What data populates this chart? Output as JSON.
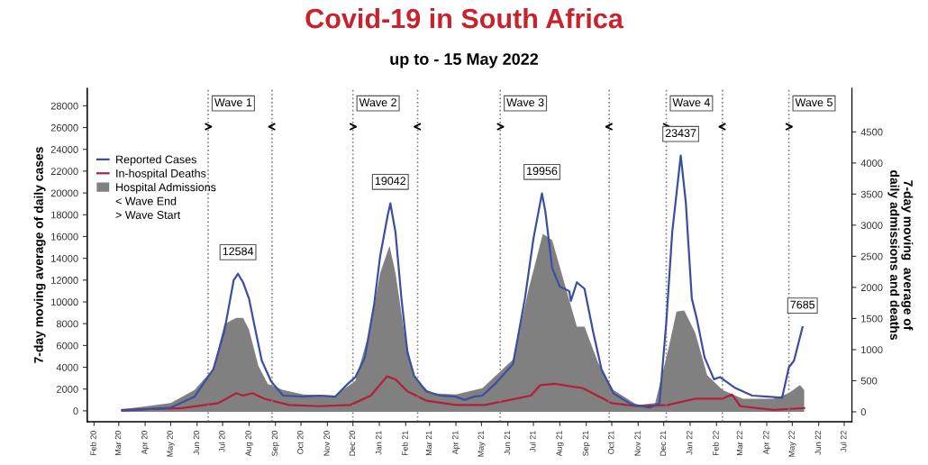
{
  "chart_data": {
    "type": "line",
    "title": "Covid-19 in South Africa",
    "subtitle": "up to - 15 May 2022",
    "ylabel": "7-day moving average of daily cases",
    "y2label": "7-day moving  average of\ndaily admissions and deaths",
    "xlim": [
      "2020-01-24",
      "2022-07-10"
    ],
    "xticks": [
      {
        "value": "2020-02-01",
        "label": "Feb 20"
      },
      {
        "value": "2020-03-01",
        "label": "Mar 20"
      },
      {
        "value": "2020-04-01",
        "label": "Apr 20"
      },
      {
        "value": "2020-05-01",
        "label": "May 20"
      },
      {
        "value": "2020-06-01",
        "label": "Jun 20"
      },
      {
        "value": "2020-07-01",
        "label": "Jul 20"
      },
      {
        "value": "2020-08-01",
        "label": "Aug 20"
      },
      {
        "value": "2020-09-01",
        "label": "Sep 20"
      },
      {
        "value": "2020-10-01",
        "label": "Oct 20"
      },
      {
        "value": "2020-11-01",
        "label": "Nov 20"
      },
      {
        "value": "2020-12-01",
        "label": "Dec 20"
      },
      {
        "value": "2021-01-01",
        "label": "Jan 21"
      },
      {
        "value": "2021-02-01",
        "label": "Feb 21"
      },
      {
        "value": "2021-03-01",
        "label": "Mar 21"
      },
      {
        "value": "2021-04-01",
        "label": "Apr 21"
      },
      {
        "value": "2021-05-01",
        "label": "May 21"
      },
      {
        "value": "2021-06-01",
        "label": "Jun 21"
      },
      {
        "value": "2021-07-01",
        "label": "Jul 21"
      },
      {
        "value": "2021-08-01",
        "label": "Aug 21"
      },
      {
        "value": "2021-09-01",
        "label": "Sep 21"
      },
      {
        "value": "2021-10-01",
        "label": "Oct 21"
      },
      {
        "value": "2021-11-01",
        "label": "Nov 21"
      },
      {
        "value": "2021-12-01",
        "label": "Dec 21"
      },
      {
        "value": "2022-01-01",
        "label": "Jan 22"
      },
      {
        "value": "2022-02-01",
        "label": "Feb 22"
      },
      {
        "value": "2022-03-01",
        "label": "Mar 22"
      },
      {
        "value": "2022-04-01",
        "label": "Apr 22"
      },
      {
        "value": "2022-05-01",
        "label": "May 22"
      },
      {
        "value": "2022-06-01",
        "label": "Jun 22"
      },
      {
        "value": "2022-07-01",
        "label": "Jul 22"
      }
    ],
    "ylim": [
      -1000,
      29600
    ],
    "yticks": [
      0,
      2000,
      4000,
      6000,
      8000,
      10000,
      12000,
      14000,
      16000,
      18000,
      20000,
      22000,
      24000,
      26000,
      28000
    ],
    "y2lim": [
      -160,
      5200
    ],
    "y2ticks": [
      0,
      500,
      1000,
      1500,
      2000,
      2500,
      3000,
      3500,
      4000,
      4500
    ],
    "grid": false,
    "legend": "top left",
    "series": [
      {
        "name": "Reported Cases",
        "color": "#3a4fa0",
        "x": [
          "2020-03-05",
          "2020-05-01",
          "2020-05-29",
          "2020-06-20",
          "2020-07-03",
          "2020-07-14",
          "2020-07-19",
          "2020-07-25",
          "2020-08-01",
          "2020-08-08",
          "2020-08-16",
          "2020-08-27",
          "2020-09-10",
          "2020-10-04",
          "2020-10-22",
          "2020-11-10",
          "2020-11-24",
          "2020-12-04",
          "2020-12-15",
          "2020-12-26",
          "2021-01-02",
          "2021-01-11",
          "2021-01-14",
          "2021-01-20",
          "2021-01-27",
          "2021-02-03",
          "2021-02-11",
          "2021-02-25",
          "2021-03-13",
          "2021-04-01",
          "2021-04-11",
          "2021-04-22",
          "2021-05-02",
          "2021-05-16",
          "2021-06-07",
          "2021-06-21",
          "2021-07-01",
          "2021-07-11",
          "2021-07-15",
          "2021-07-23",
          "2021-08-01",
          "2021-08-12",
          "2021-08-14",
          "2021-08-21",
          "2021-08-30",
          "2021-09-09",
          "2021-09-19",
          "2021-10-03",
          "2021-10-24",
          "2021-11-15",
          "2021-11-26",
          "2021-12-04",
          "2021-12-11",
          "2021-12-21",
          "2021-12-27",
          "2022-01-03",
          "2022-01-09",
          "2022-01-18",
          "2022-01-29",
          "2022-02-05",
          "2022-02-23",
          "2022-03-15",
          "2022-04-02",
          "2022-04-19",
          "2022-04-27",
          "2022-05-03",
          "2022-05-13"
        ],
        "values": [
          0,
          300,
          1300,
          3800,
          7300,
          12000,
          12584,
          11800,
          10300,
          7600,
          4600,
          2700,
          1400,
          1300,
          1400,
          1300,
          2400,
          3100,
          4900,
          9800,
          14200,
          18000,
          19042,
          16400,
          10300,
          5400,
          3200,
          1800,
          1400,
          1300,
          1000,
          1300,
          1400,
          2400,
          4300,
          10300,
          15800,
          19956,
          18300,
          13100,
          11400,
          11000,
          10100,
          11800,
          11200,
          7300,
          3800,
          1600,
          600,
          300,
          700,
          8100,
          16400,
          23437,
          19100,
          10300,
          8400,
          4900,
          2900,
          3100,
          2100,
          1400,
          1300,
          1200,
          4000,
          4600,
          7685
        ]
      },
      {
        "name": "In-hospital Deaths",
        "axis": "y2",
        "color": "#b0203a",
        "x": [
          "2020-03-05",
          "2020-05-14",
          "2020-06-26",
          "2020-07-17",
          "2020-07-25",
          "2020-08-05",
          "2020-08-19",
          "2020-09-17",
          "2020-10-22",
          "2020-11-28",
          "2020-12-22",
          "2021-01-10",
          "2021-01-20",
          "2021-02-03",
          "2021-02-25",
          "2021-04-01",
          "2021-05-05",
          "2021-06-28",
          "2021-07-09",
          "2021-07-26",
          "2021-08-28",
          "2021-10-01",
          "2021-10-31",
          "2021-12-06",
          "2022-01-07",
          "2022-02-08",
          "2022-02-19",
          "2022-03-01",
          "2022-04-09",
          "2022-05-15"
        ],
        "values": [
          30,
          60,
          140,
          300,
          260,
          300,
          210,
          110,
          90,
          110,
          260,
          570,
          520,
          330,
          180,
          110,
          110,
          260,
          430,
          450,
          380,
          140,
          90,
          110,
          210,
          210,
          280,
          90,
          30,
          60
        ]
      },
      {
        "name": "Hospital Admissions",
        "type": "area",
        "axis": "y2",
        "color": "#808080",
        "x": [
          "2020-03-05",
          "2020-05-01",
          "2020-05-29",
          "2020-06-20",
          "2020-07-03",
          "2020-07-17",
          "2020-07-25",
          "2020-08-01",
          "2020-08-12",
          "2020-08-23",
          "2020-09-10",
          "2020-10-04",
          "2020-11-10",
          "2020-12-04",
          "2020-12-22",
          "2021-01-02",
          "2021-01-13",
          "2021-01-20",
          "2021-01-31",
          "2021-02-11",
          "2021-03-02",
          "2021-04-01",
          "2021-05-02",
          "2021-06-07",
          "2021-06-25",
          "2021-07-12",
          "2021-07-23",
          "2021-08-21",
          "2021-08-30",
          "2021-09-15",
          "2021-10-03",
          "2021-10-31",
          "2021-11-21",
          "2021-12-06",
          "2021-12-16",
          "2021-12-25",
          "2022-01-07",
          "2022-01-21",
          "2022-02-08",
          "2022-03-04",
          "2022-04-09",
          "2022-04-27",
          "2022-05-10",
          "2022-05-15"
        ],
        "values": [
          40,
          140,
          350,
          690,
          1410,
          1510,
          1510,
          1320,
          740,
          450,
          350,
          280,
          260,
          500,
          1370,
          2230,
          2670,
          2230,
          1220,
          550,
          300,
          280,
          380,
          840,
          1950,
          2860,
          2760,
          1370,
          1370,
          790,
          350,
          110,
          140,
          980,
          1610,
          1630,
          1270,
          590,
          350,
          210,
          210,
          300,
          430,
          350
        ]
      }
    ],
    "ref_lines": [
      {
        "axis": "x",
        "value": "2020-06-14",
        "label": "Wave 1",
        "color": "#808080",
        "line_style": "dotted"
      },
      {
        "axis": "x",
        "value": "2020-08-28",
        "color": "#808080",
        "line_style": "dotted"
      },
      {
        "axis": "x",
        "value": "2020-12-01",
        "label": "Wave 2",
        "color": "#808080",
        "line_style": "dotted"
      },
      {
        "axis": "x",
        "value": "2021-02-15",
        "color": "#808080",
        "line_style": "dotted"
      },
      {
        "axis": "x",
        "value": "2021-05-23",
        "label": "Wave 3",
        "color": "#808080",
        "line_style": "dotted"
      },
      {
        "axis": "x",
        "value": "2021-09-28",
        "color": "#808080",
        "line_style": "dotted"
      },
      {
        "axis": "x",
        "value": "2021-12-04",
        "label": "Wave 4",
        "color": "#808080",
        "line_style": "dotted"
      },
      {
        "axis": "x",
        "value": "2022-02-08",
        "color": "#808080",
        "line_style": "dotted"
      },
      {
        "axis": "x",
        "value": "2022-04-27",
        "label": "Wave 5",
        "color": "#808080",
        "line_style": "dotted"
      }
    ],
    "annotations": [
      {
        "text": "12584",
        "x": "2020-07-19",
        "y": 12584
      },
      {
        "text": "19042",
        "x": "2021-01-14",
        "y": 19042
      },
      {
        "text": "19956",
        "x": "2021-07-11",
        "y": 19956
      },
      {
        "text": "23437",
        "x": "2021-12-21",
        "y": 23437
      },
      {
        "text": "7685",
        "x": "2022-05-13",
        "y": 7685
      },
      "< Wave End",
      "> Wave Start"
    ]
  }
}
